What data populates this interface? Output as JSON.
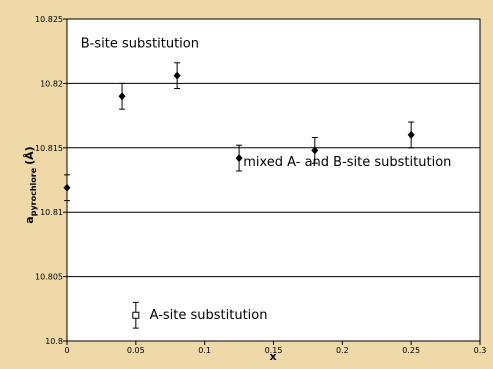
{
  "chart_data": {
    "type": "scatter",
    "title": "",
    "xlabel": "x",
    "ylabel": "a",
    "ylabel_sub": "pyrochlore",
    "ylabel_unit": "(Å)",
    "xlim": [
      0,
      0.3
    ],
    "ylim": [
      10.8,
      10.825
    ],
    "xticks": [
      "0",
      "0.05",
      "0.1",
      "0.15",
      "0.2",
      "0.25",
      "0.3"
    ],
    "yticks": [
      "10.8",
      "10.805",
      "10.81",
      "10.815",
      "10.82",
      "10.825"
    ],
    "xtick_values": [
      0,
      0.05,
      0.1,
      0.15,
      0.2,
      0.25,
      0.3
    ],
    "ytick_values": [
      10.8,
      10.805,
      10.81,
      10.815,
      10.82,
      10.825
    ],
    "grid": "horizontal",
    "series": [
      {
        "marker": "filled-diamond",
        "points": [
          {
            "x": 0,
            "y": 10.8119,
            "err": 0.001
          },
          {
            "x": 0.04,
            "y": 10.819,
            "err": 0.001
          },
          {
            "x": 0.08,
            "y": 10.8206,
            "err": 0.001
          },
          {
            "x": 0.125,
            "y": 10.8142,
            "err": 0.001
          },
          {
            "x": 0.18,
            "y": 10.8148,
            "err": 0.001
          },
          {
            "x": 0.25,
            "y": 10.816,
            "err": 0.001
          }
        ]
      },
      {
        "marker": "open-square",
        "points": [
          {
            "x": 0.05,
            "y": 10.802,
            "err": 0.001
          }
        ]
      }
    ],
    "annotations": [
      {
        "text": "B-site substitution",
        "x": 0.01,
        "y": 10.8228
      },
      {
        "text": "mixed A- and B-site substitution",
        "x": 0.128,
        "y": 10.8136
      },
      {
        "text": "A-site substitution",
        "x": 0.06,
        "y": 10.8017
      }
    ],
    "colors": {
      "background": "#f0d9a8",
      "plot": "#ffffff",
      "marker": "#000000"
    }
  }
}
